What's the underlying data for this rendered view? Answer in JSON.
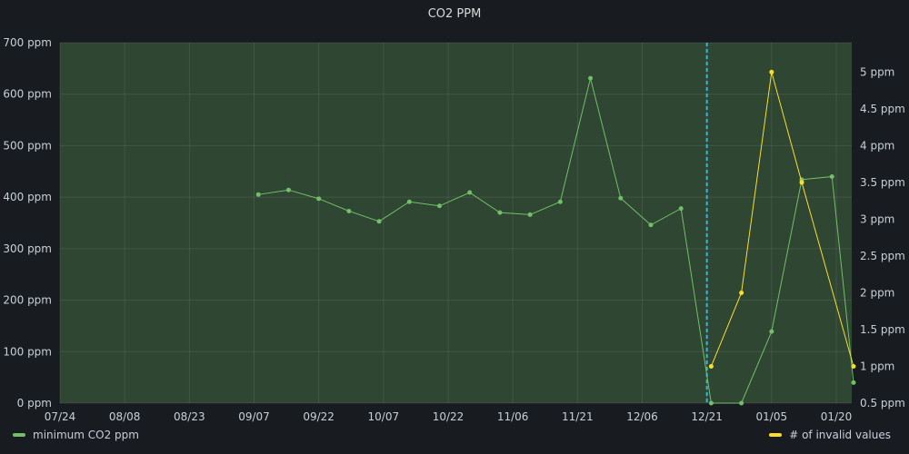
{
  "chart_data": {
    "type": "line",
    "title": "CO2 PPM",
    "x_ticks": [
      "07/24",
      "08/08",
      "08/23",
      "09/07",
      "09/22",
      "10/07",
      "10/22",
      "11/06",
      "11/21",
      "12/06",
      "12/21",
      "01/05",
      "01/20"
    ],
    "y_left": {
      "range": [
        0,
        700
      ],
      "ticks": [
        "0 ppm",
        "100 ppm",
        "200 ppm",
        "300 ppm",
        "400 ppm",
        "500 ppm",
        "600 ppm",
        "700 ppm"
      ]
    },
    "y_right": {
      "range": [
        0.5,
        5.4
      ],
      "ticks": [
        "0.5 ppm",
        "1 ppm",
        "1.5 ppm",
        "2 ppm",
        "2.5 ppm",
        "3 ppm",
        "3.5 ppm",
        "4 ppm",
        "4.5 ppm",
        "5 ppm"
      ]
    },
    "marker_date": "12/21",
    "series": [
      {
        "name": "minimum CO2 ppm",
        "axis": "left",
        "color": "#73bf69",
        "points": [
          [
            "09/08",
            405
          ],
          [
            "09/15",
            414
          ],
          [
            "09/22",
            397
          ],
          [
            "09/29",
            373
          ],
          [
            "10/06",
            353
          ],
          [
            "10/13",
            391
          ],
          [
            "10/20",
            383
          ],
          [
            "10/27",
            409
          ],
          [
            "11/03",
            370
          ],
          [
            "11/10",
            366
          ],
          [
            "11/17",
            391
          ],
          [
            "11/24",
            631
          ],
          [
            "12/01",
            398
          ],
          [
            "12/08",
            346
          ],
          [
            "12/15",
            378
          ],
          [
            "12/22",
            0
          ],
          [
            "12/29",
            0
          ],
          [
            "01/05",
            139
          ],
          [
            "01/12",
            434
          ],
          [
            "01/19",
            440
          ],
          [
            "01/24",
            40
          ]
        ]
      },
      {
        "name": "# of invalid values",
        "axis": "right",
        "color": "#fade2a",
        "points": [
          [
            "12/22",
            1
          ],
          [
            "12/29",
            2
          ],
          [
            "01/05",
            5
          ],
          [
            "01/12",
            3.5
          ],
          [
            "01/24",
            1
          ]
        ]
      }
    ]
  }
}
